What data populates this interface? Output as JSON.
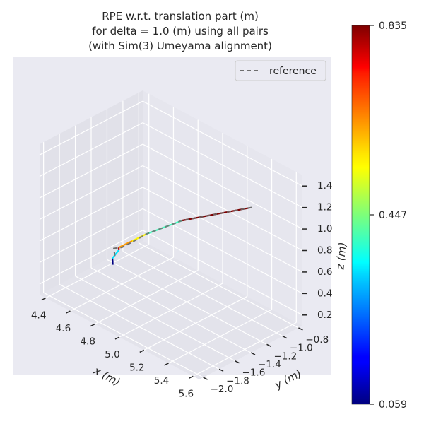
{
  "chart_data": {
    "type": "line",
    "title": [
      "RPE w.r.t. translation part (m)",
      "for delta = 1.0 (m) using all pairs",
      "(with Sim(3) Umeyama alignment)"
    ],
    "xlabel": "x (m)",
    "ylabel": "y (m)",
    "zlabel": "z (m)",
    "x_ticks": [
      "4.4",
      "4.6",
      "4.8",
      "5.0",
      "5.2",
      "5.4",
      "5.6"
    ],
    "y_ticks": [
      "−2.0",
      "−1.8",
      "−1.6",
      "−1.4",
      "−1.2",
      "−1.0",
      "−0.8"
    ],
    "z_ticks": [
      "0.2",
      "0.4",
      "0.6",
      "0.8",
      "1.0",
      "1.2",
      "1.4"
    ],
    "xlim": [
      4.35,
      5.65
    ],
    "ylim": [
      -2.05,
      -0.75
    ],
    "zlim": [
      0.1,
      1.5
    ],
    "legend": {
      "position": "top-right",
      "entries": [
        "reference"
      ]
    },
    "grid": true,
    "colorbar": {
      "colormap": "jet",
      "min": 0.059,
      "max": 0.835,
      "ticks": [
        "0.059",
        "0.447",
        "0.835"
      ]
    },
    "series": [
      {
        "name": "reference",
        "style": "dashed",
        "color": "#6e6e6e",
        "x": [
          4.62,
          4.6,
          4.64,
          4.69,
          4.76,
          4.95,
          5.32
        ],
        "y": [
          -1.52,
          -1.5,
          -1.46,
          -1.41,
          -1.34,
          -1.18,
          -0.88
        ],
        "z": [
          0.42,
          0.47,
          0.49,
          0.55,
          0.64,
          0.82,
          1.05
        ]
      },
      {
        "name": "",
        "style": "colored-by-error",
        "segments": [
          {
            "x": [
              4.63,
              4.62
            ],
            "y": [
              -1.56,
              -1.55
            ],
            "z": [
              0.36,
              0.41
            ],
            "error": 0.06
          },
          {
            "x": [
              4.62,
              4.64
            ],
            "y": [
              -1.55,
              -1.5
            ],
            "z": [
              0.41,
              0.48
            ],
            "error": 0.33
          },
          {
            "x": [
              4.64,
              4.62
            ],
            "y": [
              -1.5,
              -1.47
            ],
            "z": [
              0.48,
              0.48
            ],
            "error": 0.79
          },
          {
            "x": [
              4.62,
              4.69
            ],
            "y": [
              -1.47,
              -1.41
            ],
            "z": [
              0.48,
              0.56
            ],
            "error": 0.62
          },
          {
            "x": [
              4.69,
              4.76
            ],
            "y": [
              -1.41,
              -1.34
            ],
            "z": [
              0.56,
              0.64
            ],
            "error": 0.55
          },
          {
            "x": [
              4.76,
              4.95
            ],
            "y": [
              -1.34,
              -1.18
            ],
            "z": [
              0.64,
              0.82
            ],
            "error": 0.4
          },
          {
            "x": [
              4.95,
              5.32
            ],
            "y": [
              -1.18,
              -0.92
            ],
            "z": [
              0.82,
              1.06
            ],
            "error": 0.835
          }
        ]
      }
    ]
  }
}
